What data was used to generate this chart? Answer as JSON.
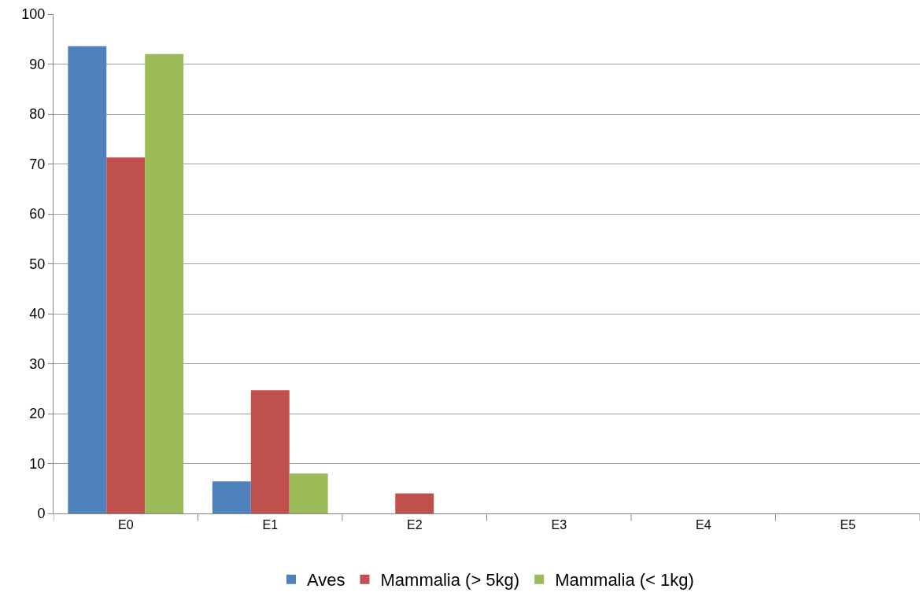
{
  "chart_data": {
    "type": "bar",
    "categories": [
      "E0",
      "E1",
      "E2",
      "E3",
      "E4",
      "E5"
    ],
    "series": [
      {
        "name": "Aves",
        "color": "#4f81bd",
        "values": [
          93.6,
          6.4,
          0,
          0,
          0,
          0
        ]
      },
      {
        "name": "Mammalia (> 5kg)",
        "color": "#c0504d",
        "values": [
          71.3,
          24.7,
          4.0,
          0,
          0,
          0
        ]
      },
      {
        "name": "Mammalia (< 1kg)",
        "color": "#9bbb59",
        "values": [
          92.0,
          8.0,
          0,
          0,
          0,
          0
        ]
      }
    ],
    "ylim": [
      0,
      100
    ],
    "yticks": [
      0,
      10,
      20,
      30,
      40,
      50,
      60,
      70,
      80,
      90,
      100
    ],
    "grid": "y",
    "legend": "bottom"
  }
}
